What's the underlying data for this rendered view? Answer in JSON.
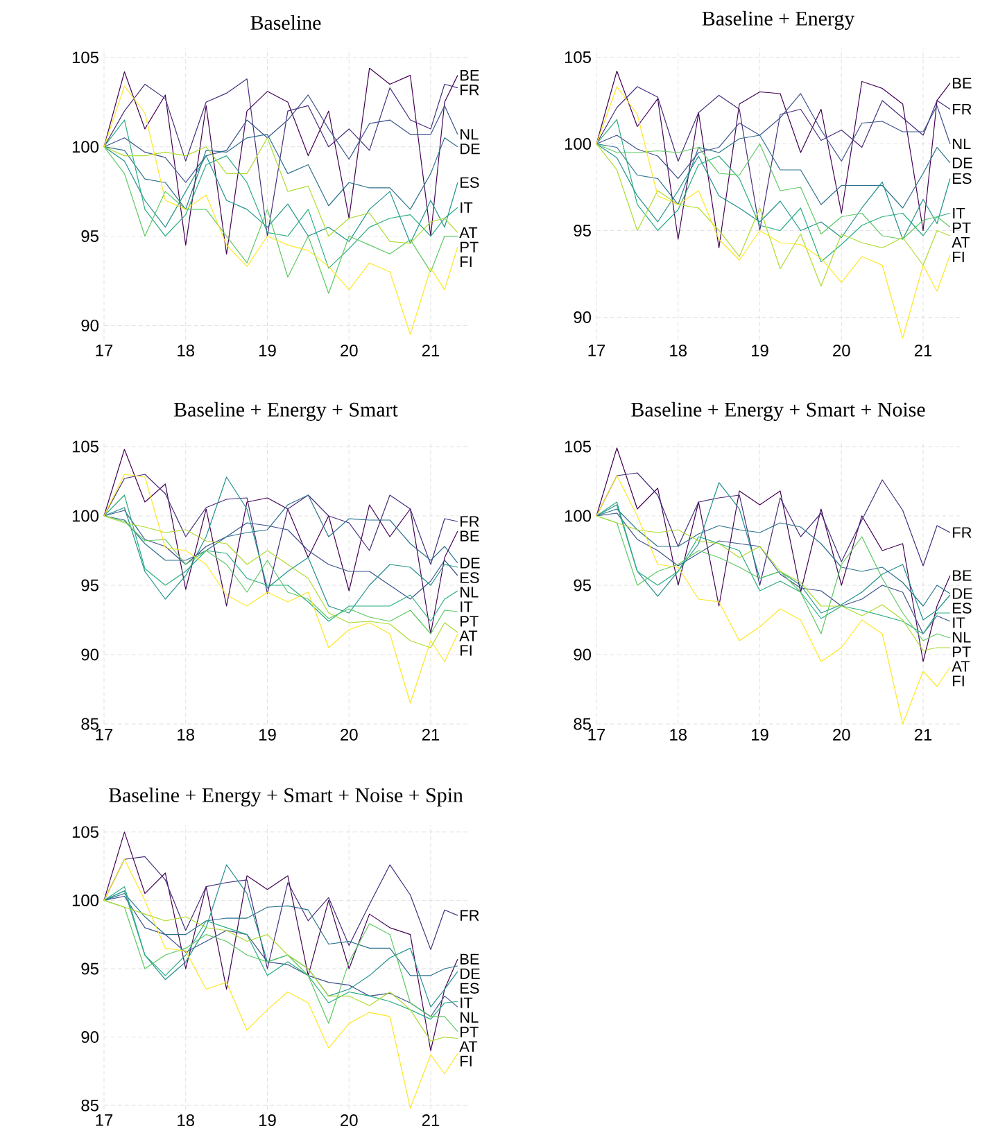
{
  "chart_data": [
    {
      "type": "line",
      "title": "Baseline",
      "x": [
        17,
        17.25,
        17.5,
        17.75,
        18,
        18.25,
        18.5,
        18.75,
        19,
        19.25,
        19.5,
        19.75,
        20,
        20.25,
        20.5,
        20.75,
        21,
        21.17,
        21.33
      ],
      "xlim": [
        17,
        21.45
      ],
      "ylim": [
        89.2,
        105.5
      ],
      "xticks": [
        17,
        18,
        19,
        20,
        21
      ],
      "yticks": [
        90,
        95,
        100,
        105
      ],
      "grid": true,
      "series": [
        {
          "name": "BE",
          "color": "#440154",
          "values": [
            100,
            104.2,
            101,
            102.9,
            94.5,
            102.3,
            94,
            102,
            103.1,
            102.5,
            99.5,
            102,
            96,
            104.4,
            103.5,
            104,
            95,
            102.5,
            104
          ]
        },
        {
          "name": "FR",
          "color": "#472d7b",
          "values": [
            100,
            102,
            103.5,
            102.7,
            99.2,
            102.5,
            103,
            103.8,
            95,
            102,
            102.3,
            100,
            101,
            99.8,
            103.3,
            101.5,
            101,
            103.5,
            103.3
          ]
        },
        {
          "name": "NL",
          "color": "#3b528b",
          "values": [
            100,
            100.5,
            99.7,
            99.4,
            98,
            99.5,
            99.8,
            101.5,
            100.5,
            101.5,
            102.9,
            101,
            99.3,
            101.3,
            101.5,
            100.7,
            100.7,
            102.3,
            100.7
          ]
        },
        {
          "name": "DE",
          "color": "#2c728e",
          "values": [
            100,
            99.8,
            98.2,
            98,
            96.5,
            99.8,
            99.7,
            100.5,
            100.7,
            98.5,
            99,
            96.7,
            98,
            97.7,
            97.7,
            96.5,
            98.5,
            100.5,
            100
          ]
        },
        {
          "name": "ES",
          "color": "#21918c",
          "values": [
            100,
            99.2,
            97,
            95.5,
            97.5,
            99.5,
            97,
            96.5,
            95.5,
            96.8,
            95,
            95.5,
            94.7,
            96.5,
            97.5,
            94.6,
            97,
            95.5,
            98
          ]
        },
        {
          "name": "IT",
          "color": "#28ae80",
          "values": [
            100,
            101.5,
            96.5,
            95,
            96.2,
            99,
            99.5,
            98,
            95.2,
            95,
            96.5,
            93.2,
            94.3,
            95.5,
            96,
            96.2,
            95,
            96,
            96.6
          ]
        },
        {
          "name": "PT",
          "color": "#5ec962",
          "values": [
            100,
            98.5,
            95,
            97.5,
            96.5,
            96.5,
            95,
            93.5,
            96.5,
            92.7,
            95,
            91.8,
            95,
            94.5,
            94,
            94.8,
            93,
            95,
            95
          ]
        },
        {
          "name": "AT",
          "color": "#addc30",
          "values": [
            100,
            99.5,
            99.5,
            99.7,
            99.5,
            100,
            98.5,
            98.5,
            100.5,
            97.5,
            97.8,
            95,
            96,
            96.3,
            94.7,
            94.6,
            95.8,
            96,
            95.2
          ]
        },
        {
          "name": "FI",
          "color": "#fde725",
          "values": [
            100,
            103.4,
            101.9,
            97,
            96.5,
            97.3,
            94.5,
            93.3,
            95,
            94.5,
            94.2,
            93.3,
            92,
            93.5,
            93,
            89.5,
            93.2,
            92,
            94.4
          ]
        }
      ]
    },
    {
      "type": "line",
      "title": "Baseline + Energy",
      "x": [
        17,
        17.25,
        17.5,
        17.75,
        18,
        18.25,
        18.5,
        18.75,
        19,
        19.25,
        19.5,
        19.75,
        20,
        20.25,
        20.5,
        20.75,
        21,
        21.17,
        21.33
      ],
      "xlim": [
        17,
        21.45
      ],
      "ylim": [
        88.7,
        105.5
      ],
      "xticks": [
        17,
        18,
        19,
        20,
        21
      ],
      "yticks": [
        90,
        95,
        100,
        105
      ],
      "grid": true,
      "series": [
        {
          "name": "BE",
          "color": "#440154",
          "values": [
            100,
            104.2,
            101,
            102.6,
            94.5,
            101.8,
            94,
            102.3,
            103,
            102.9,
            99.5,
            102,
            96,
            103.6,
            103.2,
            102.3,
            95,
            102.5,
            103.5
          ]
        },
        {
          "name": "FR",
          "color": "#472d7b",
          "values": [
            100,
            102.1,
            103.3,
            102.7,
            99,
            101.8,
            102.8,
            102,
            95,
            101.7,
            102,
            100.2,
            100.8,
            99.8,
            102.5,
            101.5,
            100.5,
            102.5,
            102
          ]
        },
        {
          "name": "NL",
          "color": "#3b528b",
          "values": [
            100,
            100.5,
            99.7,
            99.3,
            98,
            99.5,
            99.8,
            101.2,
            100.5,
            101.5,
            102.9,
            100.8,
            99,
            101.2,
            101.3,
            100.7,
            100.7,
            102.2,
            100
          ]
        },
        {
          "name": "DE",
          "color": "#2c728e",
          "values": [
            100,
            99.8,
            98.2,
            98,
            96.5,
            99.8,
            99.5,
            100.3,
            100.5,
            98.5,
            98.5,
            96.5,
            97.6,
            97.6,
            97.6,
            96.3,
            98.3,
            99.8,
            98.9
          ]
        },
        {
          "name": "ES",
          "color": "#21918c",
          "values": [
            100,
            99.2,
            97,
            95.5,
            97.3,
            99.3,
            97,
            96.3,
            95.5,
            96.7,
            95,
            95.5,
            94.6,
            96.3,
            97.8,
            94.5,
            96.8,
            95.4,
            98
          ]
        },
        {
          "name": "IT",
          "color": "#28ae80",
          "values": [
            100,
            101.4,
            96.5,
            95,
            96.2,
            98.8,
            99.3,
            98,
            95.3,
            95,
            96.3,
            93.2,
            94.2,
            95.3,
            95.8,
            96,
            94.7,
            95.8,
            96
          ]
        },
        {
          "name": "PT",
          "color": "#5ec962",
          "values": [
            100,
            99.5,
            99.5,
            99.6,
            99.5,
            99.8,
            98.3,
            98.2,
            100,
            97.3,
            97.5,
            94.8,
            95.8,
            96,
            94.7,
            94.5,
            95.6,
            95.8,
            95.2
          ]
        },
        {
          "name": "AT",
          "color": "#addc30",
          "values": [
            100,
            98.5,
            95,
            97.3,
            96.5,
            96.3,
            95,
            93.5,
            96.3,
            92.8,
            94.8,
            91.8,
            94.8,
            94.3,
            94,
            94.6,
            93,
            95,
            94.7
          ]
        },
        {
          "name": "FI",
          "color": "#fde725",
          "values": [
            100,
            103.3,
            101.7,
            97,
            96.5,
            97.3,
            94.5,
            93.3,
            95,
            94.3,
            94.2,
            93.4,
            92,
            93.5,
            93,
            88.8,
            93,
            91.5,
            93.6
          ]
        }
      ]
    },
    {
      "type": "line",
      "title": "Baseline + Energy + Smart",
      "x": [
        17,
        17.25,
        17.5,
        17.75,
        18,
        18.25,
        18.5,
        18.75,
        19,
        19.25,
        19.5,
        19.75,
        20,
        20.25,
        20.5,
        20.75,
        21,
        21.17,
        21.33
      ],
      "xlim": [
        17,
        21.45
      ],
      "ylim": [
        85,
        105.5
      ],
      "xticks": [
        17,
        18,
        19,
        20,
        21
      ],
      "yticks": [
        85,
        90,
        95,
        100,
        105
      ],
      "grid": true,
      "series": [
        {
          "name": "BE",
          "color": "#440154",
          "values": [
            100,
            104.8,
            101,
            102.3,
            94.7,
            100.5,
            93.5,
            101,
            101.3,
            100.5,
            97,
            100,
            94.6,
            100.8,
            98.5,
            100.5,
            91.5,
            97,
            98.9
          ]
        },
        {
          "name": "FR",
          "color": "#472d7b",
          "values": [
            100,
            102.7,
            103,
            101.6,
            98.5,
            100.6,
            101.2,
            101.3,
            94.4,
            100.5,
            101.5,
            100,
            99.5,
            97.5,
            101.5,
            100.5,
            96.5,
            99.8,
            99.6
          ]
        },
        {
          "name": "NL",
          "color": "#3b528b",
          "values": [
            100,
            100.4,
            98.3,
            97.8,
            96.5,
            97.8,
            98.5,
            99.5,
            99.3,
            99,
            97.5,
            96.5,
            96,
            96,
            95,
            94,
            95.3,
            96.8,
            95.7
          ]
        },
        {
          "name": "DE",
          "color": "#2c728e",
          "values": [
            100,
            99.7,
            98,
            96.8,
            96.8,
            97.5,
            98.5,
            98.8,
            99,
            100.8,
            101.5,
            98.5,
            99.8,
            99.7,
            99.7,
            98,
            96.8,
            97.8,
            96.6
          ]
        },
        {
          "name": "ES",
          "color": "#21918c",
          "values": [
            100,
            100.6,
            96,
            94,
            95.7,
            98.5,
            102.8,
            100.5,
            94.8,
            96,
            97,
            93.5,
            93,
            95,
            96.5,
            96.3,
            95,
            96.5,
            96.3
          ]
        },
        {
          "name": "IT",
          "color": "#28ae80",
          "values": [
            100,
            101.5,
            96.2,
            95,
            96,
            97.5,
            97.3,
            95.5,
            95,
            95,
            93.8,
            92.4,
            93.5,
            93.5,
            93.5,
            94.3,
            92.4,
            94,
            94.6
          ]
        },
        {
          "name": "PT",
          "color": "#5ec962",
          "values": [
            100,
            99.6,
            98.2,
            98.3,
            96.5,
            97.5,
            96.5,
            94.5,
            96.8,
            94.5,
            94,
            92.6,
            93.3,
            92.7,
            92.4,
            93.2,
            91.5,
            93.2,
            93.1
          ]
        },
        {
          "name": "AT",
          "color": "#addc30",
          "values": [
            100,
            99.5,
            99.2,
            98.8,
            99,
            98.2,
            98,
            96.5,
            97.5,
            96.5,
            95.5,
            93,
            92.3,
            92.4,
            92.2,
            91,
            90.5,
            92.3,
            91.6
          ]
        },
        {
          "name": "FI",
          "color": "#fde725",
          "values": [
            100,
            103,
            102.8,
            97.7,
            97.5,
            96.5,
            94.3,
            93.5,
            94.5,
            93.8,
            94.5,
            90.5,
            91.8,
            92.3,
            91.5,
            86.5,
            91,
            89.5,
            91.5
          ]
        }
      ]
    },
    {
      "type": "line",
      "title": "Baseline + Energy + Smart + Noise",
      "x": [
        17,
        17.25,
        17.5,
        17.75,
        18,
        18.25,
        18.5,
        18.75,
        19,
        19.25,
        19.5,
        19.75,
        20,
        20.25,
        20.5,
        20.75,
        21,
        21.17,
        21.33
      ],
      "xlim": [
        17,
        21.45
      ],
      "ylim": [
        85,
        105.5
      ],
      "xticks": [
        17,
        18,
        19,
        20,
        21
      ],
      "yticks": [
        85,
        90,
        95,
        100,
        105
      ],
      "grid": true,
      "series": [
        {
          "name": "BE",
          "color": "#440154",
          "values": [
            100,
            104.9,
            100.5,
            102,
            95,
            101,
            93.5,
            101.8,
            100.8,
            101.8,
            94.5,
            100.5,
            95,
            100,
            97.5,
            98,
            89.5,
            93.5,
            95.7
          ]
        },
        {
          "name": "FR",
          "color": "#472d7b",
          "values": [
            100,
            102.9,
            103.1,
            101.5,
            97.8,
            101,
            101.3,
            101.5,
            95,
            101.3,
            98.5,
            100.2,
            96.7,
            99.7,
            102.6,
            100.4,
            96.4,
            99.3,
            98.8
          ]
        },
        {
          "name": "NL",
          "color": "#3b528b",
          "values": [
            100,
            100.2,
            98.3,
            97.5,
            96.4,
            97.3,
            98.2,
            98,
            97.8,
            95.8,
            94.8,
            94.6,
            93.5,
            94,
            95,
            94.5,
            91.5,
            92.8,
            92.4
          ]
        },
        {
          "name": "DE",
          "color": "#2c728e",
          "values": [
            100,
            100.5,
            99,
            97.8,
            97.8,
            98.7,
            99.3,
            99,
            98.8,
            99.5,
            99.2,
            98,
            96.3,
            96,
            96.3,
            95.2,
            93.5,
            95,
            94.4
          ]
        },
        {
          "name": "ES",
          "color": "#21918c",
          "values": [
            100,
            100.8,
            96,
            94.2,
            96,
            98,
            102.4,
            100.5,
            95.5,
            96,
            95,
            93,
            93.6,
            94.5,
            95.8,
            96.5,
            92.5,
            93.2,
            94.3
          ]
        },
        {
          "name": "IT",
          "color": "#28ae80",
          "values": [
            100,
            101,
            96,
            95,
            96,
            98.5,
            98,
            97.5,
            94.6,
            95.3,
            94.5,
            92.6,
            93.5,
            93.2,
            92.8,
            92.4,
            91.5,
            93,
            93
          ]
        },
        {
          "name": "PT",
          "color": "#5ec962",
          "values": [
            100,
            99.5,
            95,
            96,
            96.5,
            97.5,
            97,
            96.3,
            95.5,
            96,
            94.5,
            91.5,
            96.5,
            98.5,
            95.5,
            93,
            91,
            91.5,
            91.2
          ]
        },
        {
          "name": "AT",
          "color": "#addc30",
          "values": [
            100,
            99.5,
            99,
            98.8,
            99,
            98.2,
            98,
            97,
            97.8,
            96,
            95.2,
            93.5,
            93.5,
            92.8,
            93.6,
            92.5,
            90.3,
            90.5,
            90.5
          ]
        },
        {
          "name": "FI",
          "color": "#fde725",
          "values": [
            100,
            102.9,
            100,
            96.5,
            96.3,
            94,
            93.8,
            91,
            92,
            93.3,
            92.5,
            89.5,
            90.5,
            92.5,
            91.5,
            85,
            88.8,
            87.7,
            89.1
          ]
        }
      ]
    },
    {
      "type": "line",
      "title": "Baseline + Energy + Smart + Noise + Spin",
      "x": [
        17,
        17.25,
        17.5,
        17.75,
        18,
        18.25,
        18.5,
        18.75,
        19,
        19.25,
        19.5,
        19.75,
        20,
        20.25,
        20.5,
        20.75,
        21,
        21.17,
        21.33
      ],
      "xlim": [
        17,
        21.45
      ],
      "ylim": [
        84.7,
        105.5
      ],
      "xticks": [
        17,
        18,
        19,
        20,
        21
      ],
      "yticks": [
        85,
        90,
        95,
        100,
        105
      ],
      "grid": true,
      "series": [
        {
          "name": "BE",
          "color": "#440154",
          "values": [
            100,
            105,
            100.5,
            102,
            95,
            101,
            93.5,
            101.8,
            100.8,
            101.8,
            94.5,
            100,
            95,
            99,
            98,
            97.5,
            89,
            93.5,
            95.7
          ]
        },
        {
          "name": "FR",
          "color": "#472d7b",
          "values": [
            100,
            103,
            103.2,
            101.5,
            97.8,
            101,
            101.3,
            101.5,
            95,
            101.3,
            98.5,
            100.2,
            96.7,
            99.7,
            102.6,
            100.4,
            96.4,
            99.3,
            98.9
          ]
        },
        {
          "name": "NL",
          "color": "#3b528b",
          "values": [
            100,
            100.3,
            98,
            97.5,
            96.2,
            97,
            97.8,
            97.5,
            95.5,
            95.3,
            94.5,
            94,
            93.8,
            93,
            93.2,
            92.5,
            91.5,
            93,
            92.2
          ]
        },
        {
          "name": "DE",
          "color": "#2c728e",
          "values": [
            100,
            100.5,
            98.8,
            97.5,
            97.5,
            98.5,
            98.7,
            98.7,
            99.5,
            99.6,
            99.3,
            96.8,
            97,
            96.5,
            96.5,
            94.5,
            94.5,
            95,
            95.2
          ]
        },
        {
          "name": "ES",
          "color": "#21918c",
          "values": [
            100,
            100.7,
            96,
            94.2,
            95.5,
            98,
            102.6,
            100.5,
            95.5,
            96,
            95,
            93,
            93.5,
            94.5,
            95.8,
            96.5,
            92.2,
            93.5,
            94.8
          ]
        },
        {
          "name": "IT",
          "color": "#28ae80",
          "values": [
            100,
            101,
            96,
            94.5,
            96,
            98.5,
            98,
            97.5,
            94.5,
            95.5,
            94.5,
            92.5,
            93.3,
            93,
            92.6,
            92,
            91.3,
            92.5,
            92.6
          ]
        },
        {
          "name": "PT",
          "color": "#5ec962",
          "values": [
            100,
            99.5,
            95,
            96,
            96.5,
            97.5,
            97,
            96,
            95.5,
            96,
            94.5,
            91,
            95.5,
            98.3,
            97.5,
            92.5,
            91.5,
            91.5,
            90.4
          ]
        },
        {
          "name": "AT",
          "color": "#addc30",
          "values": [
            100,
            99.5,
            99,
            98.5,
            98.8,
            98,
            97.8,
            97,
            97.5,
            96,
            95,
            93,
            93,
            92.3,
            93.3,
            92,
            89.7,
            90,
            89.9
          ]
        },
        {
          "name": "FI",
          "color": "#fde725",
          "values": [
            100,
            103,
            100,
            96.5,
            96.3,
            93.5,
            94,
            90.5,
            92,
            93.3,
            92.5,
            89.2,
            91,
            91.8,
            91.5,
            84.8,
            88.7,
            87.3,
            88.8
          ]
        }
      ]
    }
  ]
}
